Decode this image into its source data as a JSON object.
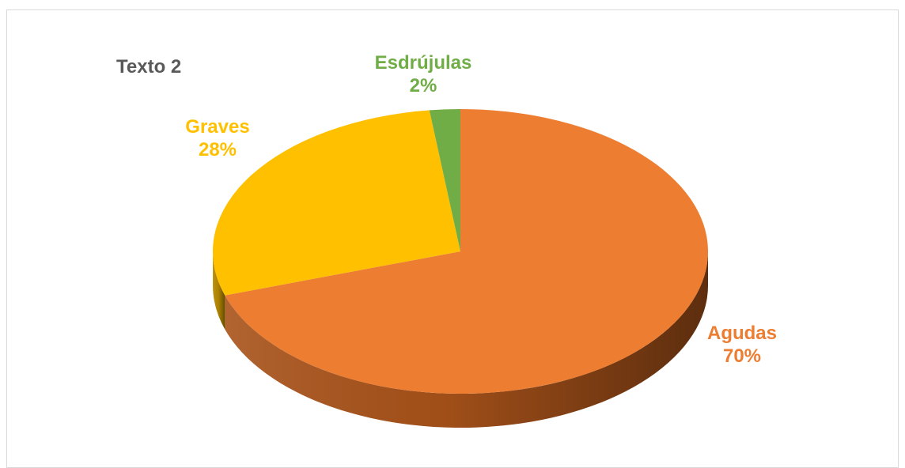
{
  "chart_data": {
    "type": "pie",
    "title": "Texto 2",
    "style": "3d",
    "slices": [
      {
        "label": "Agudas",
        "value": 70,
        "percent_label": "70%",
        "color": "#ED7D31",
        "side_color": "#A9531A"
      },
      {
        "label": "Graves",
        "value": 28,
        "percent_label": "28%",
        "color": "#FFC000",
        "side_color": "#B88A00"
      },
      {
        "label": "Esdrújulas",
        "value": 2,
        "percent_label": "2%",
        "color": "#70AD47",
        "side_color": "#4E7A31"
      }
    ],
    "title_color": "#595959",
    "border_color": "#D9D9D9"
  }
}
